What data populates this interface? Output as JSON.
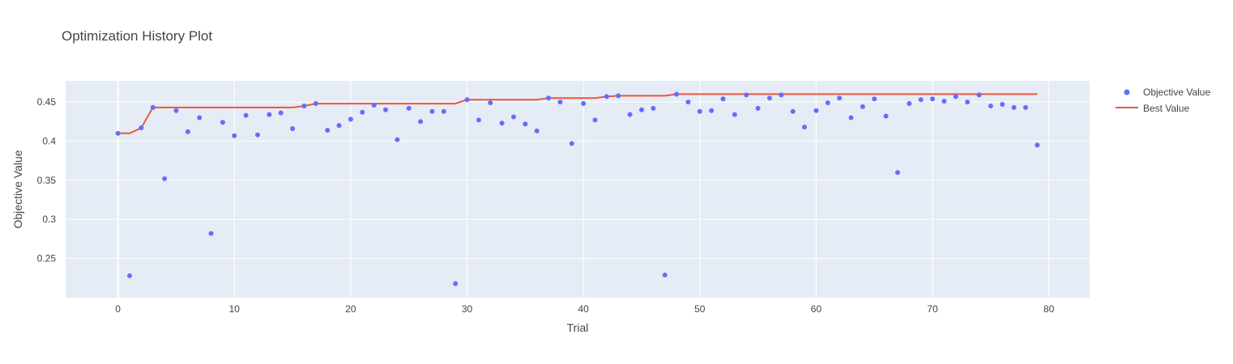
{
  "chart_data": {
    "type": "scatter",
    "title": "Optimization History Plot",
    "xlabel": "Trial",
    "ylabel": "Objective Value",
    "xlim": [
      -4.5,
      83.5
    ],
    "ylim": [
      0.2,
      0.477
    ],
    "x_ticks": [
      0,
      10,
      20,
      30,
      40,
      50,
      60,
      70,
      80
    ],
    "x_tick_labels": [
      "0",
      "10",
      "20",
      "30",
      "40",
      "50",
      "60",
      "70",
      "80"
    ],
    "y_ticks": [
      0.25,
      0.3,
      0.35,
      0.4,
      0.45
    ],
    "y_tick_labels": [
      "0.25",
      "0.3",
      "0.35",
      "0.4",
      "0.45"
    ],
    "grid": true,
    "legend_position": "right",
    "colors": {
      "plot_bg": "#e5ecf6",
      "grid": "#ffffff",
      "objective": "#636efa",
      "best": "#ef553b",
      "text": "#444444"
    },
    "series": [
      {
        "name": "Objective Value",
        "mode": "markers",
        "x": [
          0,
          1,
          2,
          3,
          4,
          5,
          6,
          7,
          8,
          9,
          10,
          11,
          12,
          13,
          14,
          15,
          16,
          17,
          18,
          19,
          20,
          21,
          22,
          23,
          24,
          25,
          26,
          27,
          28,
          29,
          30,
          31,
          32,
          33,
          34,
          35,
          36,
          37,
          38,
          39,
          40,
          41,
          42,
          43,
          44,
          45,
          46,
          47,
          48,
          49,
          50,
          51,
          52,
          53,
          54,
          55,
          56,
          57,
          58,
          59,
          60,
          61,
          62,
          63,
          64,
          65,
          66,
          67,
          68,
          69,
          70,
          71,
          72,
          73,
          74,
          75,
          76,
          77,
          78,
          79
        ],
        "y": [
          0.41,
          0.228,
          0.417,
          0.443,
          0.352,
          0.439,
          0.412,
          0.43,
          0.282,
          0.424,
          0.407,
          0.433,
          0.408,
          0.434,
          0.436,
          0.416,
          0.445,
          0.448,
          0.414,
          0.42,
          0.428,
          0.437,
          0.446,
          0.44,
          0.402,
          0.442,
          0.425,
          0.438,
          0.438,
          0.218,
          0.453,
          0.427,
          0.449,
          0.423,
          0.431,
          0.422,
          0.413,
          0.455,
          0.45,
          0.397,
          0.448,
          0.427,
          0.457,
          0.458,
          0.434,
          0.44,
          0.442,
          0.229,
          0.46,
          0.45,
          0.438,
          0.439,
          0.454,
          0.434,
          0.459,
          0.442,
          0.455,
          0.459,
          0.438,
          0.418,
          0.439,
          0.449,
          0.455,
          0.43,
          0.444,
          0.454,
          0.432,
          0.36,
          0.448,
          0.453,
          0.454,
          0.451,
          0.457,
          0.45,
          0.459,
          0.445,
          0.447,
          0.443,
          0.443,
          0.395
        ]
      },
      {
        "name": "Best Value",
        "mode": "line",
        "x": [
          0,
          1,
          2,
          3,
          4,
          5,
          6,
          7,
          8,
          9,
          10,
          11,
          12,
          13,
          14,
          15,
          16,
          17,
          18,
          19,
          20,
          21,
          22,
          23,
          24,
          25,
          26,
          27,
          28,
          29,
          30,
          31,
          32,
          33,
          34,
          35,
          36,
          37,
          38,
          39,
          40,
          41,
          42,
          43,
          44,
          45,
          46,
          47,
          48,
          49,
          50,
          51,
          52,
          53,
          54,
          55,
          56,
          57,
          58,
          59,
          60,
          61,
          62,
          63,
          64,
          65,
          66,
          67,
          68,
          69,
          70,
          71,
          72,
          73,
          74,
          75,
          76,
          77,
          78,
          79
        ],
        "y": [
          0.41,
          0.41,
          0.417,
          0.443,
          0.443,
          0.443,
          0.443,
          0.443,
          0.443,
          0.443,
          0.443,
          0.443,
          0.443,
          0.443,
          0.443,
          0.443,
          0.445,
          0.448,
          0.448,
          0.448,
          0.448,
          0.448,
          0.448,
          0.448,
          0.448,
          0.448,
          0.448,
          0.448,
          0.448,
          0.448,
          0.453,
          0.453,
          0.453,
          0.453,
          0.453,
          0.453,
          0.453,
          0.455,
          0.455,
          0.455,
          0.455,
          0.455,
          0.457,
          0.458,
          0.458,
          0.458,
          0.458,
          0.458,
          0.46,
          0.46,
          0.46,
          0.46,
          0.46,
          0.46,
          0.46,
          0.46,
          0.46,
          0.46,
          0.46,
          0.46,
          0.46,
          0.46,
          0.46,
          0.46,
          0.46,
          0.46,
          0.46,
          0.46,
          0.46,
          0.46,
          0.46,
          0.46,
          0.46,
          0.46,
          0.46,
          0.46,
          0.46,
          0.46,
          0.46,
          0.46
        ]
      }
    ]
  }
}
